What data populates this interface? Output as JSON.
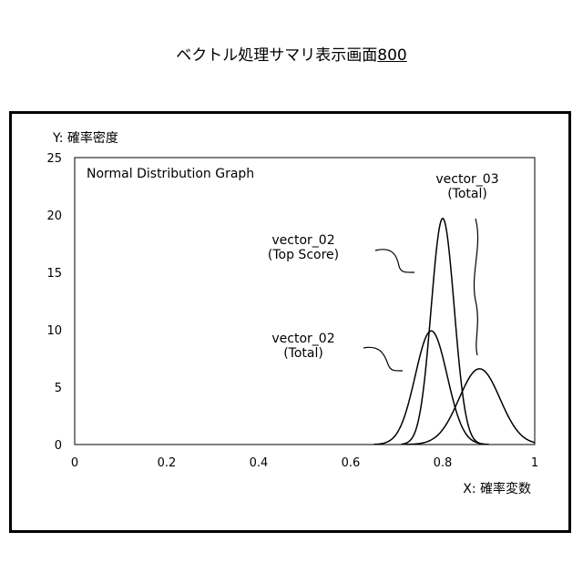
{
  "header": {
    "title": "ベクトル処理サマリ表示画面",
    "ref_number": "800"
  },
  "chart_data": {
    "type": "line",
    "title": "Normal Distribution Graph",
    "xlabel": "X: 確率変数",
    "ylabel": "Y: 確率密度",
    "xlim": [
      0,
      1
    ],
    "ylim": [
      0,
      25
    ],
    "x_ticks": [
      "0",
      "0.2",
      "0.4",
      "0.6",
      "0.8",
      "1"
    ],
    "y_ticks": [
      "0",
      "5",
      "10",
      "15",
      "20",
      "25"
    ],
    "grid": false,
    "legend": "none",
    "series": [
      {
        "name": "vector_02 (Top Score)",
        "label_line1": "vector_02",
        "label_line2": "(Top Score)",
        "mean": 0.8,
        "peak": 19.7,
        "x_range": [
          0.71,
          0.89
        ]
      },
      {
        "name": "vector_02 (Total)",
        "label_line1": "vector_02",
        "label_line2": "(Total)",
        "mean": 0.775,
        "peak": 9.9,
        "x_range": [
          0.65,
          0.9
        ]
      },
      {
        "name": "vector_03 (Total)",
        "label_line1": "vector_03",
        "label_line2": "(Total)",
        "mean": 0.88,
        "peak": 6.6,
        "x_range": [
          0.72,
          1.0
        ]
      }
    ]
  }
}
